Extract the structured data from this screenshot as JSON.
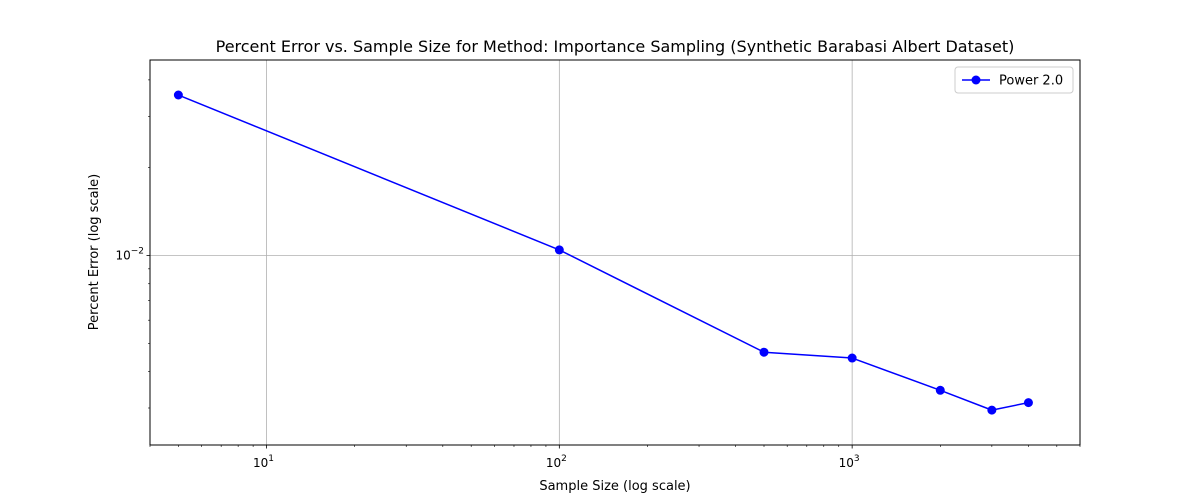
{
  "chart_data": {
    "type": "line",
    "title": "Percent Error vs. Sample Size for Method: Importance Sampling (Synthetic Barabasi Albert Dataset)",
    "xlabel": "Sample Size (log scale)",
    "ylabel": "Percent Error (log scale)",
    "xscale": "log",
    "yscale": "log",
    "xlim": [
      4,
      6000
    ],
    "ylim": [
      0.00224,
      0.0468
    ],
    "x_major_ticks": [
      {
        "value": 10,
        "base": "10",
        "exp": "1"
      },
      {
        "value": 100,
        "base": "10",
        "exp": "2"
      },
      {
        "value": 1000,
        "base": "10",
        "exp": "3"
      }
    ],
    "y_major_ticks": [
      {
        "value": 0.01,
        "base": "10",
        "exp": "−2"
      }
    ],
    "grid": true,
    "legend_position": "top-right",
    "series": [
      {
        "name": "Power 2.0",
        "color": "#0000ff",
        "marker": "circle",
        "x": [
          5,
          100,
          500,
          1000,
          2000,
          3000,
          4000
        ],
        "y": [
          0.0355,
          0.01045,
          0.00466,
          0.00445,
          0.00345,
          0.00295,
          0.00313
        ]
      }
    ]
  }
}
